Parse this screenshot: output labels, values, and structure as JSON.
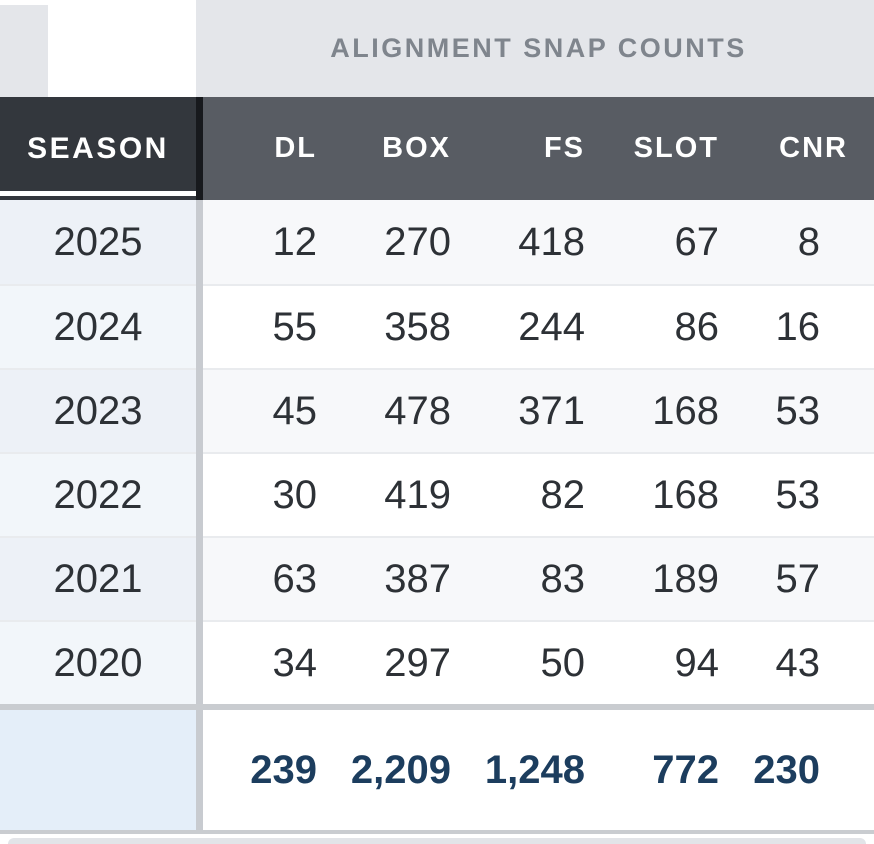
{
  "title": "ALIGNMENT SNAP COUNTS",
  "table": {
    "season_header": "SEASON",
    "columns": [
      "DL",
      "BOX",
      "FS",
      "SLOT",
      "CNR"
    ],
    "rows": [
      {
        "season": "2025",
        "values": [
          "12",
          "270",
          "418",
          "67",
          "8"
        ]
      },
      {
        "season": "2024",
        "values": [
          "55",
          "358",
          "244",
          "86",
          "16"
        ]
      },
      {
        "season": "2023",
        "values": [
          "45",
          "478",
          "371",
          "168",
          "53"
        ]
      },
      {
        "season": "2022",
        "values": [
          "30",
          "419",
          "82",
          "168",
          "53"
        ]
      },
      {
        "season": "2021",
        "values": [
          "63",
          "387",
          "83",
          "189",
          "57"
        ]
      },
      {
        "season": "2020",
        "values": [
          "34",
          "297",
          "50",
          "94",
          "43"
        ]
      }
    ],
    "totals": [
      "239",
      "2,209",
      "1,248",
      "772",
      "230"
    ]
  },
  "colors": {
    "title_band_bg": "#e4e6ea",
    "title_text": "#7f858d",
    "header_bg": "#585c63",
    "season_header_bg": "#33373d",
    "header_text": "#ffffff",
    "data_text": "#2d3136",
    "row_stripe": "#f7f8fa",
    "season_cell_tint": "#edf1f7",
    "totals_season_bg": "#e4eef9",
    "totals_text": "#1c3d5e",
    "divider": "#c9ccd0"
  }
}
